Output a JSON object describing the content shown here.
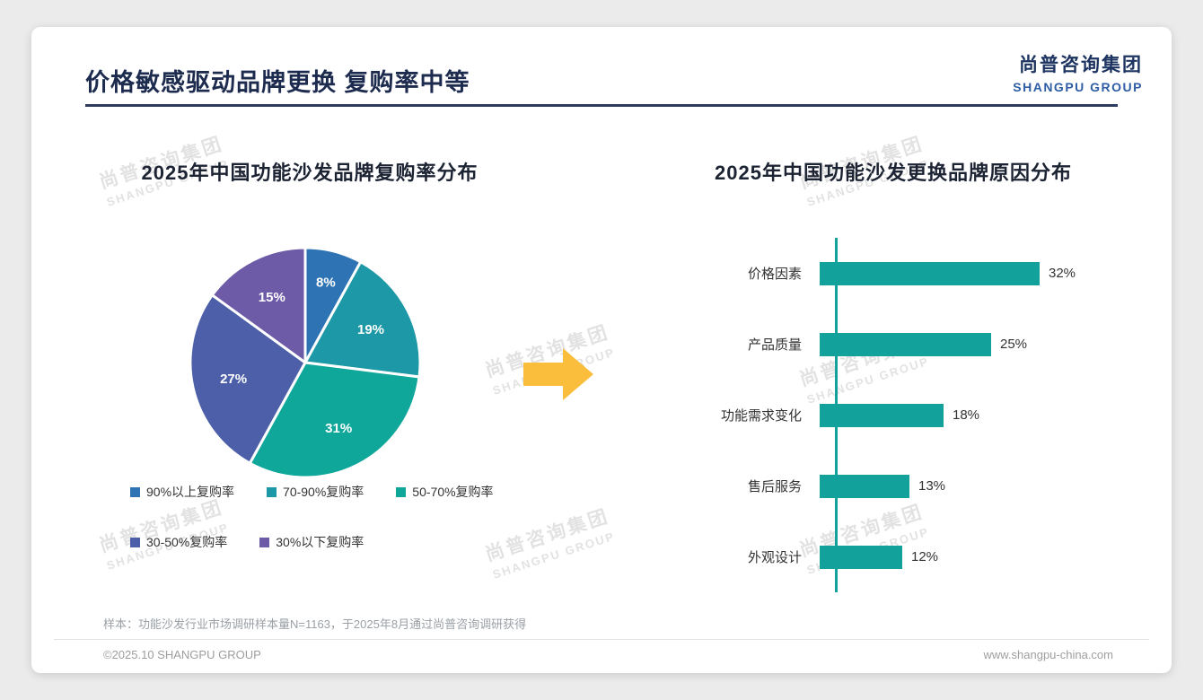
{
  "header": {
    "title": "价格敏感驱动品牌更换 复购率中等"
  },
  "logo": {
    "cn": "尚普咨询集团",
    "en": "SHANGPU GROUP"
  },
  "watermark": {
    "cn": "尚普咨询集团",
    "en": "SHANGPU GROUP"
  },
  "arrow_color": "#FBBE3C",
  "chart_data": [
    {
      "type": "pie",
      "title": "2025年中国功能沙发品牌复购率分布",
      "labels": [
        "90%以上复购率",
        "70-90%复购率",
        "50-70%复购率",
        "30-50%复购率",
        "30%以下复购率"
      ],
      "values": [
        8,
        19,
        31,
        27,
        15
      ],
      "value_suffix": "%",
      "colors": [
        "#2E74B5",
        "#1D98A6",
        "#10A79B",
        "#4C5FA8",
        "#6E5BA7"
      ],
      "start_angle_deg": 0,
      "legend_position": "bottom",
      "legend_rows": [
        3,
        2
      ]
    },
    {
      "type": "bar",
      "orientation": "horizontal",
      "title": "2025年中国功能沙发更换品牌原因分布",
      "categories": [
        "价格因素",
        "产品质量",
        "功能需求变化",
        "售后服务",
        "外观设计"
      ],
      "values": [
        32,
        25,
        18,
        13,
        12
      ],
      "value_suffix": "%",
      "bar_color": "#12A29B",
      "axis_color": "#12A29B",
      "xlim": [
        0,
        35
      ],
      "grid": false,
      "legend_position": "none"
    }
  ],
  "footnote": "样本：功能沙发行业市场调研样本量N=1163，于2025年8月通过尚普咨询调研获得",
  "footer": {
    "left": "©2025.10 SHANGPU GROUP",
    "right": "www.shangpu-china.com"
  }
}
